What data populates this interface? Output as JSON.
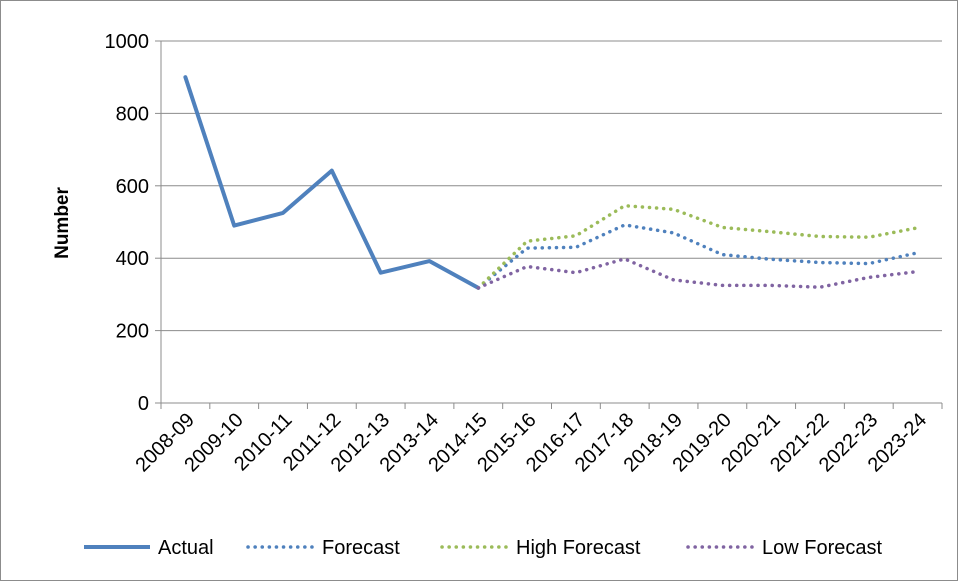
{
  "chart_data": {
    "type": "line",
    "title": "",
    "xlabel": "",
    "ylabel": "Number",
    "ylim": [
      0,
      1000
    ],
    "yticks": [
      0,
      200,
      400,
      600,
      800,
      1000
    ],
    "grid": "horizontal",
    "legend_position": "bottom",
    "categories": [
      "2008-09",
      "2009-10",
      "2010-11",
      "2011-12",
      "2012-13",
      "2013-14",
      "2014-15",
      "2015-16",
      "2016-17",
      "2017-18",
      "2018-19",
      "2019-20",
      "2020-21",
      "2021-22",
      "2022-23",
      "2023-24"
    ],
    "series": [
      {
        "name": "Actual",
        "style": "solid",
        "color": "#4f81bd",
        "values": [
          900,
          490,
          525,
          642,
          360,
          392,
          318,
          null,
          null,
          null,
          null,
          null,
          null,
          null,
          null,
          null
        ]
      },
      {
        "name": "Forecast",
        "style": "dotted",
        "color": "#4f81bd",
        "values": [
          null,
          null,
          null,
          null,
          null,
          null,
          318,
          428,
          430,
          492,
          470,
          410,
          397,
          388,
          385,
          415
        ]
      },
      {
        "name": "High Forecast",
        "style": "dotted",
        "color": "#9bbb59",
        "values": [
          null,
          null,
          null,
          null,
          null,
          null,
          318,
          447,
          462,
          545,
          535,
          485,
          473,
          460,
          458,
          484
        ]
      },
      {
        "name": "Low Forecast",
        "style": "dotted",
        "color": "#8064a2",
        "values": [
          null,
          null,
          null,
          null,
          null,
          null,
          318,
          377,
          360,
          398,
          340,
          325,
          325,
          320,
          347,
          363
        ]
      }
    ]
  }
}
